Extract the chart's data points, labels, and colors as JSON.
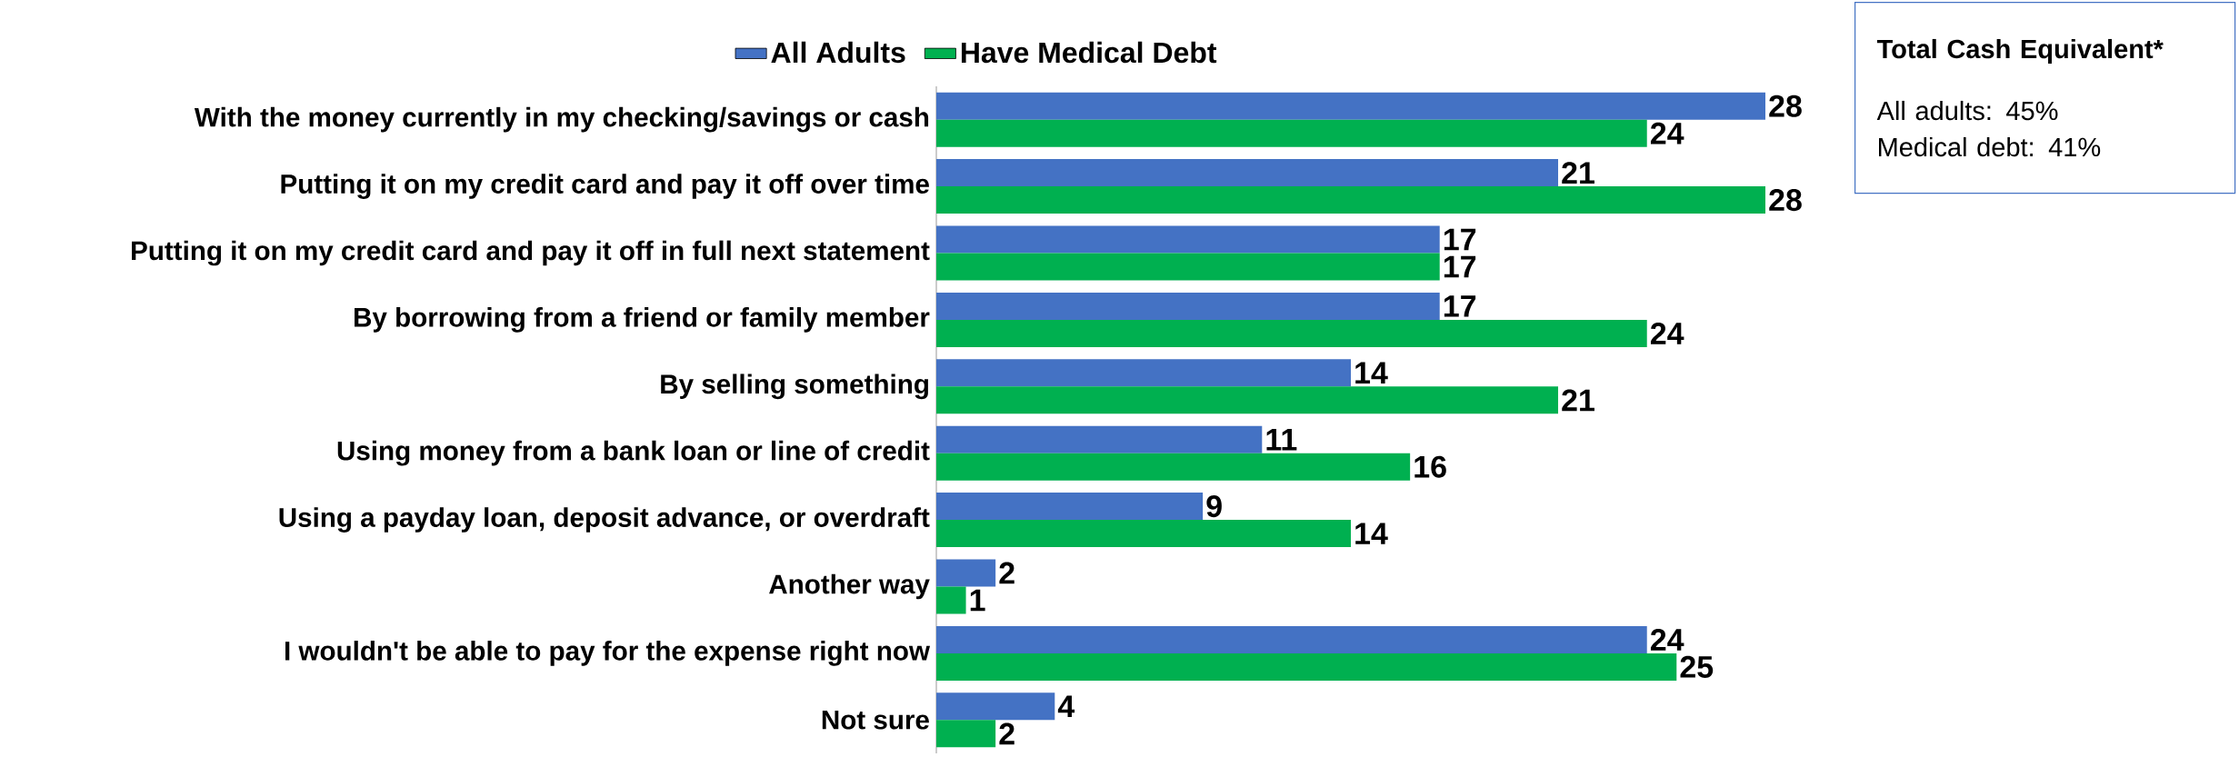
{
  "chart_data": {
    "type": "bar",
    "orientation": "horizontal",
    "data_labels": true,
    "legend": "top",
    "categories": [
      "With the money currently in my checking/savings or cash",
      "Putting it on my credit card and pay it off over time",
      "Putting it on my credit card and pay it off in full next statement",
      "By borrowing from a friend or family member",
      "By selling something",
      "Using money from a bank loan or line of credit",
      "Using a payday loan, deposit advance, or overdraft",
      "Another way",
      "I wouldn't be able to pay for the expense right now",
      "Not sure"
    ],
    "series": [
      {
        "name": "All Adults",
        "color": "#4472c4",
        "values": [
          28,
          21,
          17,
          17,
          14,
          11,
          9,
          2,
          24,
          4
        ]
      },
      {
        "name": "Have Medical Debt",
        "color": "#00b050",
        "values": [
          24,
          28,
          17,
          24,
          21,
          16,
          14,
          1,
          25,
          2
        ]
      }
    ],
    "annotations": [
      "Total Cash Equivalent*",
      "All adults: 45%",
      "Medical debt: 41%"
    ]
  }
}
